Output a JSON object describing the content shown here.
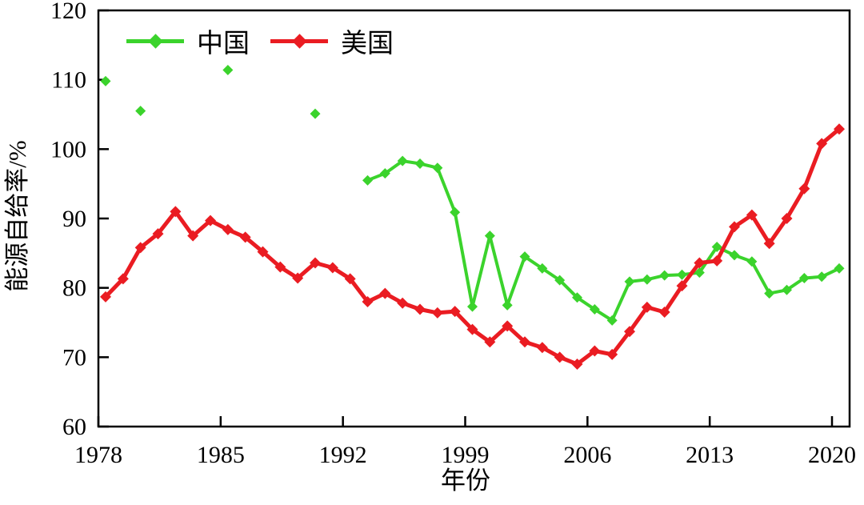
{
  "page": {
    "background": "#ffffff"
  },
  "chart_data": {
    "type": "line",
    "title": "",
    "xlabel": "年份",
    "ylabel": "能源自给率/%",
    "xlim": [
      1978,
      2020
    ],
    "ylim": [
      60,
      120
    ],
    "x_ticks": [
      1978,
      1985,
      1992,
      1999,
      2006,
      2013,
      2020
    ],
    "y_ticks": [
      60,
      70,
      80,
      90,
      100,
      110,
      120
    ],
    "grid": false,
    "legend_position": "top-inside",
    "series": [
      {
        "name": "中国",
        "color": "#3bd32c",
        "marker": "diamond",
        "line_width": 4,
        "marker_half": 6.5,
        "isolated_points": [
          [
            1978,
            109.8
          ],
          [
            1980,
            105.5
          ],
          [
            1985,
            111.4
          ],
          [
            1990,
            105.1
          ]
        ],
        "line_points": [
          [
            1993,
            95.5
          ],
          [
            1994,
            96.5
          ],
          [
            1995,
            98.3
          ],
          [
            1996,
            97.9
          ],
          [
            1997,
            97.3
          ],
          [
            1998,
            90.9
          ],
          [
            1999,
            77.3
          ],
          [
            2000,
            87.5
          ],
          [
            2001,
            77.5
          ],
          [
            2002,
            84.5
          ],
          [
            2003,
            82.8
          ],
          [
            2004,
            81.1
          ],
          [
            2005,
            78.6
          ],
          [
            2006,
            76.9
          ],
          [
            2007,
            75.3
          ],
          [
            2008,
            80.9
          ],
          [
            2009,
            81.2
          ],
          [
            2010,
            81.8
          ],
          [
            2011,
            81.9
          ],
          [
            2012,
            82.2
          ],
          [
            2013,
            85.9
          ],
          [
            2014,
            84.7
          ],
          [
            2015,
            83.8
          ],
          [
            2016,
            79.2
          ],
          [
            2017,
            79.7
          ],
          [
            2018,
            81.4
          ],
          [
            2019,
            81.6
          ],
          [
            2020,
            82.8
          ]
        ]
      },
      {
        "name": "美国",
        "color": "#ea1c22",
        "marker": "diamond",
        "line_width": 5,
        "marker_half": 7,
        "isolated_points": [],
        "line_points": [
          [
            1978,
            78.7
          ],
          [
            1979,
            81.3
          ],
          [
            1980,
            85.8
          ],
          [
            1981,
            87.8
          ],
          [
            1982,
            91.0
          ],
          [
            1983,
            87.5
          ],
          [
            1984,
            89.7
          ],
          [
            1985,
            88.4
          ],
          [
            1986,
            87.3
          ],
          [
            1987,
            85.2
          ],
          [
            1988,
            83.0
          ],
          [
            1989,
            81.4
          ],
          [
            1990,
            83.6
          ],
          [
            1991,
            82.9
          ],
          [
            1992,
            81.3
          ],
          [
            1993,
            78.0
          ],
          [
            1994,
            79.2
          ],
          [
            1995,
            77.8
          ],
          [
            1996,
            76.9
          ],
          [
            1997,
            76.4
          ],
          [
            1998,
            76.6
          ],
          [
            1999,
            74.0
          ],
          [
            2000,
            72.2
          ],
          [
            2001,
            74.5
          ],
          [
            2002,
            72.2
          ],
          [
            2003,
            71.4
          ],
          [
            2004,
            70.0
          ],
          [
            2005,
            69.0
          ],
          [
            2006,
            70.9
          ],
          [
            2007,
            70.4
          ],
          [
            2008,
            73.7
          ],
          [
            2009,
            77.2
          ],
          [
            2010,
            76.5
          ],
          [
            2011,
            80.3
          ],
          [
            2012,
            83.6
          ],
          [
            2013,
            83.9
          ],
          [
            2014,
            88.8
          ],
          [
            2015,
            90.5
          ],
          [
            2016,
            86.4
          ],
          [
            2017,
            90.0
          ],
          [
            2018,
            94.3
          ],
          [
            2019,
            100.8
          ],
          [
            2020,
            102.9
          ]
        ]
      }
    ]
  },
  "legend": {
    "entries": [
      {
        "label": "中国",
        "color": "#3bd32c"
      },
      {
        "label": "美国",
        "color": "#ea1c22"
      }
    ]
  }
}
